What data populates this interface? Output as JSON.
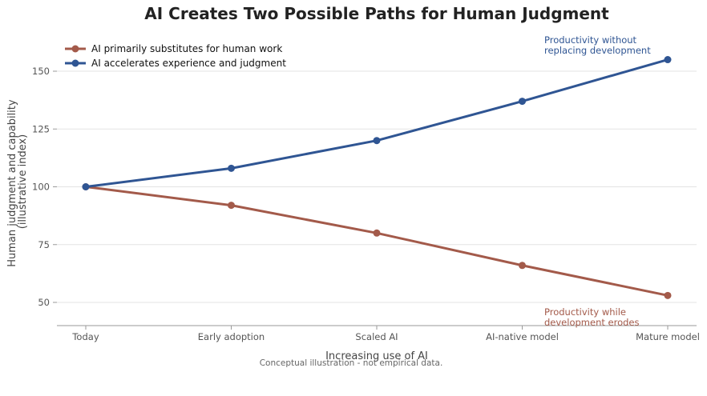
{
  "chart_data": {
    "type": "line",
    "title": "AI Creates Two Possible Paths for Human Judgment",
    "xlabel": "Increasing use of AI",
    "ylabel_lines": [
      "Human judgment and capability",
      "(illustrative index)"
    ],
    "categories": [
      "Today",
      "Early adoption",
      "Scaled AI",
      "AI-native model",
      "Mature model"
    ],
    "yticks": [
      50,
      75,
      100,
      125,
      150
    ],
    "ylim": [
      40,
      160
    ],
    "grid": "horizontal",
    "legend_position": "top-left",
    "series": [
      {
        "name": "AI primarily substitutes for human work",
        "color": "#a35a4a",
        "values": [
          100,
          92,
          80,
          66,
          53
        ]
      },
      {
        "name": "AI accelerates experience and judgment",
        "color": "#2f5593",
        "values": [
          100,
          108,
          120,
          137,
          155
        ]
      }
    ],
    "annotations": [
      {
        "lines": [
          "Productivity without",
          "replacing development"
        ],
        "color": "#2f5593",
        "series": 1,
        "anchor": "top-right"
      },
      {
        "lines": [
          "Productivity while",
          "development erodes"
        ],
        "color": "#a35a4a",
        "series": 0,
        "anchor": "bottom-right"
      }
    ],
    "footnote": "Conceptual illustration - not empirical data."
  }
}
